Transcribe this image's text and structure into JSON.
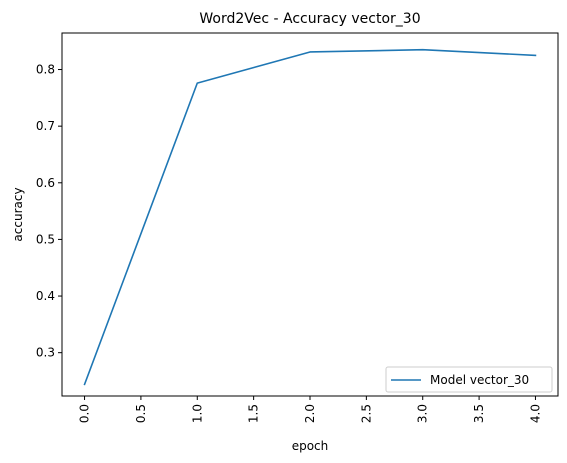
{
  "chart_data": {
    "type": "line",
    "title": "Word2Vec - Accuracy vector_30",
    "xlabel": "epoch",
    "ylabel": "accuracy",
    "xlim": [
      -0.2,
      4.2
    ],
    "ylim": [
      0.2235,
      0.8645
    ],
    "xticks": [
      0.0,
      0.5,
      1.0,
      1.5,
      2.0,
      2.5,
      3.0,
      3.5,
      4.0
    ],
    "xtick_labels": [
      "0.0",
      "0.5",
      "1.0",
      "1.5",
      "2.0",
      "2.5",
      "3.0",
      "3.5",
      "4.0"
    ],
    "yticks": [
      0.3,
      0.4,
      0.5,
      0.6,
      0.7,
      0.8
    ],
    "ytick_labels": [
      "0.3",
      "0.4",
      "0.5",
      "0.6",
      "0.7",
      "0.8"
    ],
    "grid": false,
    "legend_position": "lower-right",
    "series": [
      {
        "name": "Model vector_30",
        "color": "#1f77b4",
        "x": [
          0,
          1,
          2,
          3,
          4
        ],
        "y": [
          0.244,
          0.776,
          0.831,
          0.835,
          0.825
        ]
      }
    ]
  }
}
